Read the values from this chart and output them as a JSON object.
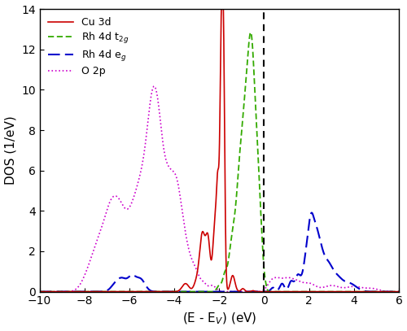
{
  "title": "",
  "xlabel": "(E - E$_V$) (eV)",
  "ylabel": "DOS (1/eV)",
  "xlim": [
    -10,
    6
  ],
  "ylim": [
    0,
    14
  ],
  "xticks": [
    -10,
    -8,
    -6,
    -4,
    -2,
    0,
    2,
    4,
    6
  ],
  "yticks": [
    0,
    2,
    4,
    6,
    8,
    10,
    12,
    14
  ],
  "vline_x": 0.0,
  "colors": {
    "Cu3d": "#cc0000",
    "Rh4d_t2g": "#33aa00",
    "Rh4d_eg": "#0000cc",
    "O2p": "#cc00cc"
  },
  "linewidths": {
    "Cu3d": 1.2,
    "Rh4d_t2g": 1.3,
    "Rh4d_eg": 1.5,
    "O2p": 1.2
  },
  "legend_labels": {
    "Cu3d": "Cu 3d",
    "Rh4d_t2g": "Rh 4d t$_{2g}$",
    "Rh4d_eg": "Rh 4d e$_g$",
    "O2p": "O 2p"
  }
}
